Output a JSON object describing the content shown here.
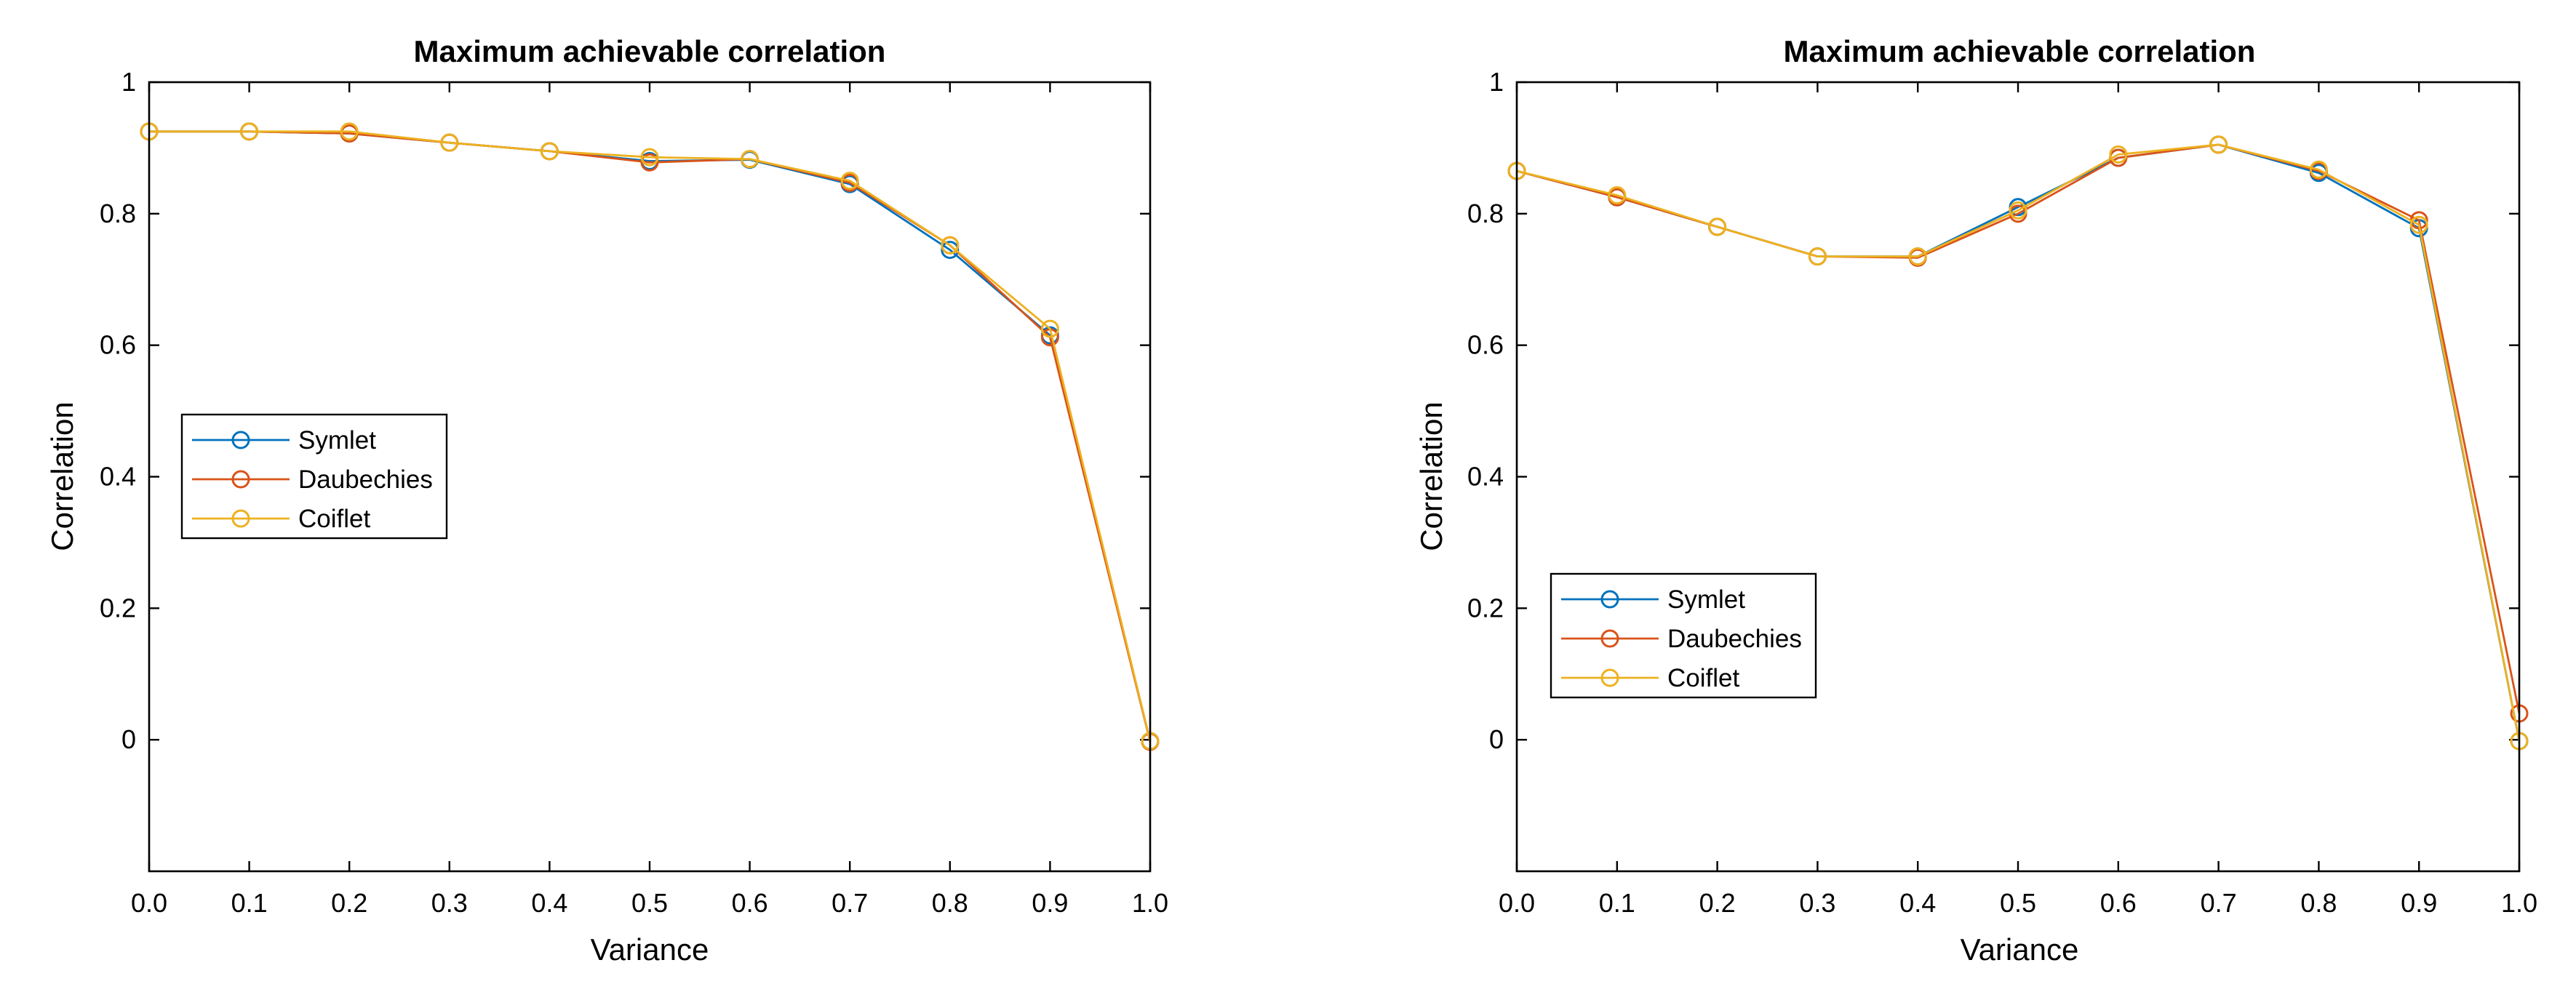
{
  "colors": {
    "Symlet": "#0072BD",
    "Daubechies": "#D95319",
    "Coiflet": "#EDB120"
  },
  "chart_data": [
    {
      "type": "line",
      "title": "Maximum achievable correlation",
      "xlabel": "Variance",
      "ylabel": "Correlation",
      "xlim": [
        0,
        1
      ],
      "ylim": [
        -0.2,
        1
      ],
      "x": [
        0.0,
        0.1,
        0.2,
        0.3,
        0.4,
        0.5,
        0.6,
        0.7,
        0.8,
        0.9,
        1.0
      ],
      "xticks": [
        "0.0",
        "0.1",
        "0.2",
        "0.3",
        "0.4",
        "0.5",
        "0.6",
        "0.7",
        "0.8",
        "0.9",
        "1.0"
      ],
      "yticks": [
        0,
        0.2,
        0.4,
        0.6,
        0.8,
        1
      ],
      "ytick_labels": [
        "0",
        "0.2",
        "0.4",
        "0.6",
        "0.8",
        "1"
      ],
      "legend_position": "center-left",
      "series": [
        {
          "name": "Symlet",
          "values": [
            0.925,
            0.925,
            0.922,
            0.908,
            0.895,
            0.88,
            0.882,
            0.845,
            0.745,
            0.615,
            -0.002
          ]
        },
        {
          "name": "Daubechies",
          "values": [
            0.925,
            0.925,
            0.922,
            0.908,
            0.895,
            0.878,
            0.883,
            0.847,
            0.752,
            0.612,
            -0.003
          ]
        },
        {
          "name": "Coiflet",
          "values": [
            0.925,
            0.925,
            0.925,
            0.908,
            0.895,
            0.886,
            0.883,
            0.85,
            0.752,
            0.625,
            -0.002
          ]
        }
      ]
    },
    {
      "type": "line",
      "title": "Maximum achievable correlation",
      "xlabel": "Variance",
      "ylabel": "Correlation",
      "xlim": [
        0,
        1
      ],
      "ylim": [
        -0.2,
        1
      ],
      "x": [
        0.0,
        0.1,
        0.2,
        0.3,
        0.4,
        0.5,
        0.6,
        0.7,
        0.8,
        0.9,
        1.0
      ],
      "xticks": [
        "0.0",
        "0.1",
        "0.2",
        "0.3",
        "0.4",
        "0.5",
        "0.6",
        "0.7",
        "0.8",
        "0.9",
        "1.0"
      ],
      "yticks": [
        0,
        0.2,
        0.4,
        0.6,
        0.8,
        1
      ],
      "ytick_labels": [
        "0",
        "0.2",
        "0.4",
        "0.6",
        "0.8",
        "1"
      ],
      "legend_position": "bottom-left",
      "series": [
        {
          "name": "Symlet",
          "values": [
            0.865,
            0.825,
            0.78,
            0.735,
            0.735,
            0.81,
            0.885,
            0.905,
            0.862,
            0.778,
            -0.002
          ]
        },
        {
          "name": "Daubechies",
          "values": [
            0.865,
            0.825,
            0.78,
            0.735,
            0.733,
            0.8,
            0.885,
            0.905,
            0.865,
            0.79,
            0.04
          ]
        },
        {
          "name": "Coiflet",
          "values": [
            0.865,
            0.828,
            0.78,
            0.735,
            0.735,
            0.805,
            0.89,
            0.905,
            0.867,
            0.783,
            -0.002
          ]
        }
      ]
    }
  ]
}
